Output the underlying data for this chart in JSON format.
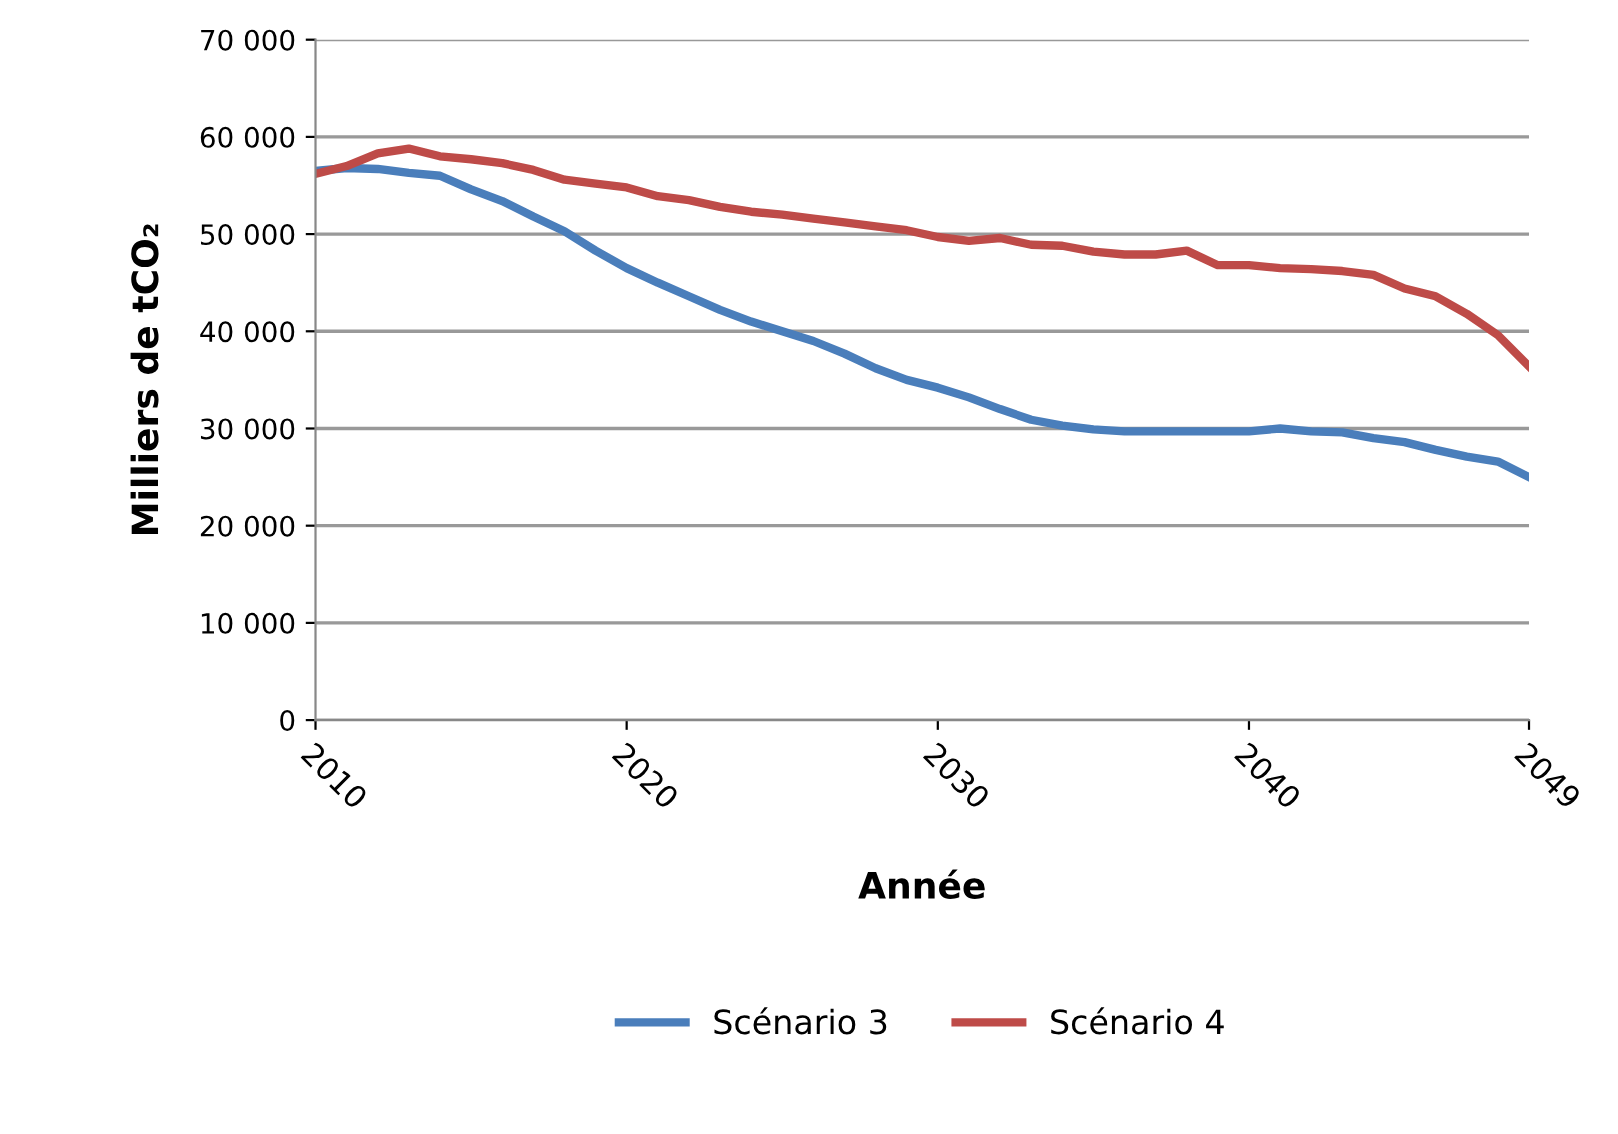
{
  "chart_data": {
    "type": "line",
    "xlabel": "Année",
    "ylabel": "Milliers de tCO₂",
    "x": [
      2010,
      2011,
      2012,
      2013,
      2014,
      2015,
      2016,
      2017,
      2018,
      2019,
      2020,
      2021,
      2022,
      2023,
      2024,
      2025,
      2026,
      2027,
      2028,
      2029,
      2030,
      2031,
      2032,
      2033,
      2034,
      2035,
      2036,
      2037,
      2038,
      2039,
      2040,
      2041,
      2042,
      2043,
      2044,
      2045,
      2046,
      2047,
      2048,
      2049
    ],
    "series": [
      {
        "name": "Scénario 3",
        "color": "#4a7ebb",
        "values": [
          56500,
          56800,
          56700,
          56300,
          56000,
          54600,
          53400,
          51800,
          50300,
          48300,
          46500,
          45000,
          43600,
          42200,
          41000,
          40000,
          39000,
          37700,
          36200,
          35000,
          34200,
          33200,
          32000,
          30900,
          30300,
          29900,
          29700,
          29700,
          29700,
          29700,
          29700,
          30000,
          29700,
          29600,
          29000,
          28600,
          27800,
          27100,
          26600,
          25000
        ]
      },
      {
        "name": "Scénario 4",
        "color": "#be4b48",
        "values": [
          56200,
          57000,
          58300,
          58800,
          58000,
          57700,
          57300,
          56600,
          55600,
          55200,
          54800,
          53900,
          53500,
          52800,
          52300,
          52000,
          51600,
          51200,
          50800,
          50400,
          49700,
          49300,
          49600,
          48900,
          48800,
          48200,
          47900,
          47900,
          48300,
          46800,
          46800,
          46500,
          46400,
          46200,
          45800,
          44400,
          43600,
          41800,
          39600,
          36400
        ]
      }
    ],
    "xlim": [
      2010,
      2049
    ],
    "xticks": [
      2010,
      2020,
      2030,
      2040,
      2049
    ],
    "ylim": [
      0,
      70000
    ],
    "yticks": [
      {
        "value": 0,
        "label": "0"
      },
      {
        "value": 10000,
        "label": "10 000"
      },
      {
        "value": 20000,
        "label": "20 000"
      },
      {
        "value": 30000,
        "label": "30 000"
      },
      {
        "value": 40000,
        "label": "40 000"
      },
      {
        "value": 50000,
        "label": "50 000"
      },
      {
        "value": 60000,
        "label": "60 000"
      },
      {
        "value": 70000,
        "label": "70 000"
      }
    ],
    "grid": "y",
    "legend": "bottom",
    "marker": "none",
    "line_style": "solid"
  }
}
